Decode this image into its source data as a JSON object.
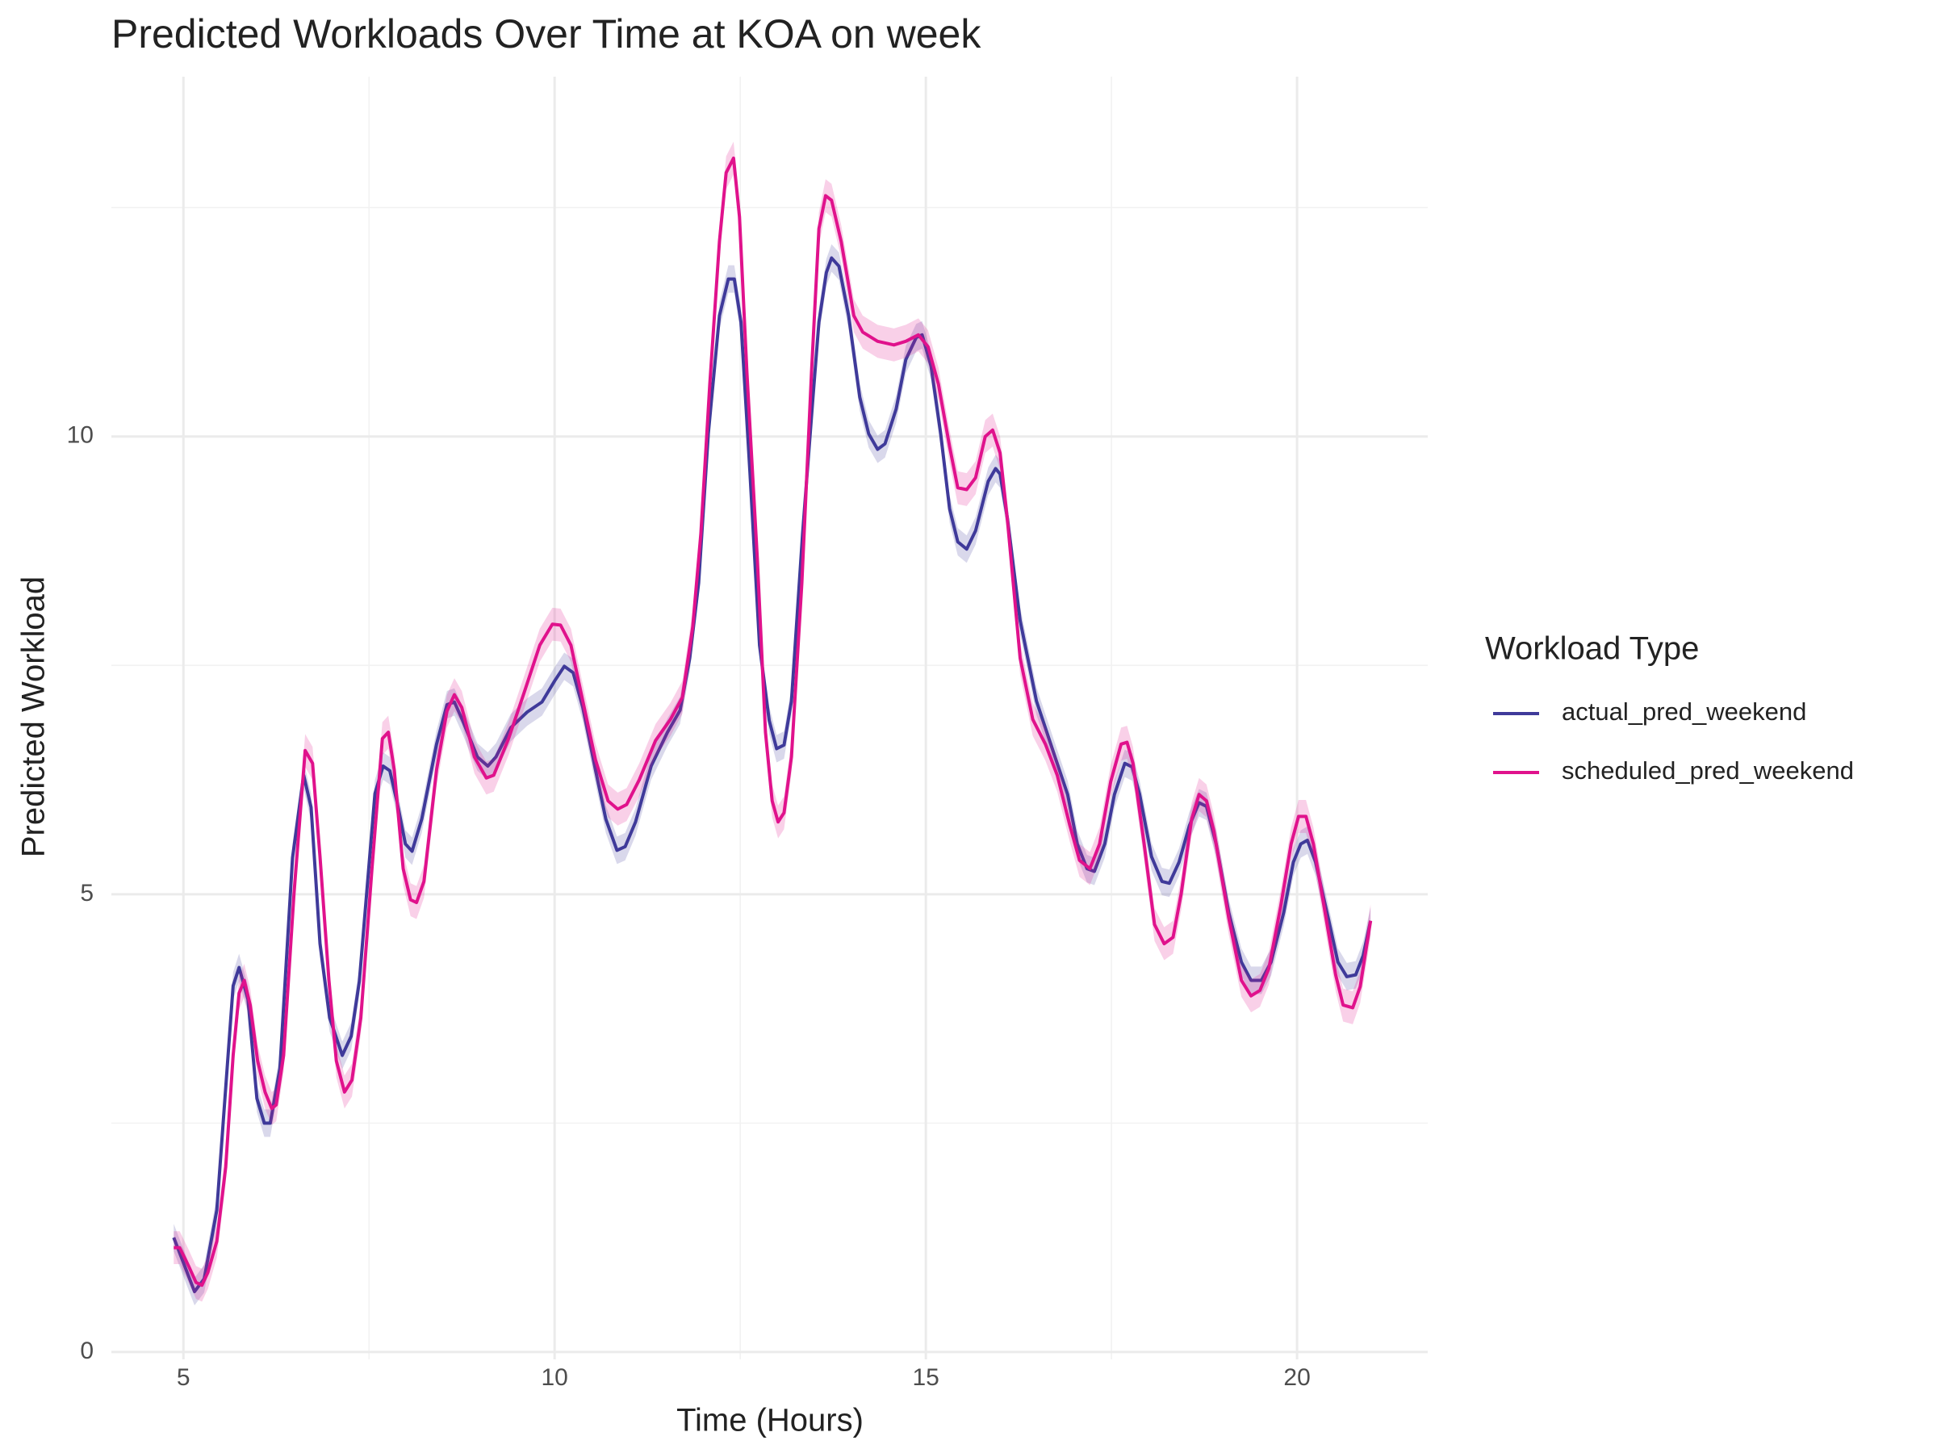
{
  "chart_data": {
    "type": "line",
    "title": "Predicted Workloads Over Time at KOA on week",
    "x_label": "Time (Hours)",
    "y_label": "Predicted Workload",
    "legend_title": "Workload Type",
    "legend_position": "right",
    "grid": true,
    "xlim": [
      4.03,
      21.76
    ],
    "ylim": [
      -0.08,
      13.93
    ],
    "xticks": [
      5,
      10,
      15,
      20
    ],
    "yticks": [
      0,
      5,
      10
    ],
    "x_minor_grid": [
      7.5,
      12.5,
      17.5
    ],
    "y_minor_grid": [
      2.5,
      7.5,
      12.5
    ],
    "series": [
      {
        "name": "actual_pred_weekend",
        "color": "#3f3a9a",
        "ribbon": 0.15,
        "x": [
          4.87,
          5.15,
          5.28,
          5.45,
          5.67,
          5.75,
          5.87,
          5.99,
          6.09,
          6.17,
          6.3,
          6.47,
          6.62,
          6.72,
          6.84,
          6.97,
          7.14,
          7.26,
          7.37,
          7.58,
          7.69,
          7.78,
          7.88,
          7.99,
          8.08,
          8.21,
          8.41,
          8.55,
          8.65,
          8.76,
          8.96,
          9.1,
          9.21,
          9.41,
          9.63,
          9.83,
          10.0,
          10.13,
          10.25,
          10.38,
          10.55,
          10.69,
          10.84,
          10.95,
          11.09,
          11.3,
          11.52,
          11.69,
          11.82,
          11.94,
          12.07,
          12.22,
          12.34,
          12.42,
          12.51,
          12.63,
          12.76,
          12.89,
          12.99,
          13.09,
          13.19,
          13.34,
          13.48,
          13.56,
          13.66,
          13.73,
          13.83,
          13.96,
          14.11,
          14.23,
          14.35,
          14.45,
          14.6,
          14.73,
          14.87,
          14.95,
          15.07,
          15.2,
          15.32,
          15.43,
          15.55,
          15.67,
          15.84,
          15.94,
          16.0,
          16.1,
          16.27,
          16.49,
          16.74,
          16.91,
          17.04,
          17.17,
          17.27,
          17.41,
          17.54,
          17.68,
          17.78,
          17.88,
          18.04,
          18.18,
          18.28,
          18.41,
          18.55,
          18.68,
          18.78,
          18.91,
          19.08,
          19.25,
          19.38,
          19.52,
          19.65,
          19.82,
          19.95,
          20.05,
          20.14,
          20.25,
          20.42,
          20.55,
          20.67,
          20.79,
          20.89,
          20.99
        ],
        "values": [
          1.25,
          0.66,
          0.8,
          1.55,
          4.0,
          4.2,
          3.85,
          2.77,
          2.5,
          2.5,
          3.1,
          5.4,
          6.3,
          5.95,
          4.46,
          3.65,
          3.24,
          3.45,
          4.05,
          6.1,
          6.4,
          6.35,
          6.0,
          5.55,
          5.47,
          5.82,
          6.64,
          7.07,
          7.1,
          6.9,
          6.5,
          6.4,
          6.5,
          6.82,
          6.99,
          7.1,
          7.33,
          7.49,
          7.42,
          7.04,
          6.36,
          5.82,
          5.48,
          5.52,
          5.79,
          6.4,
          6.77,
          7.01,
          7.58,
          8.4,
          10.03,
          11.32,
          11.72,
          11.72,
          11.25,
          9.62,
          7.72,
          6.9,
          6.59,
          6.63,
          7.11,
          8.94,
          10.43,
          11.25,
          11.79,
          11.95,
          11.86,
          11.32,
          10.43,
          10.03,
          9.86,
          9.92,
          10.3,
          10.84,
          11.08,
          11.11,
          10.77,
          10.03,
          9.21,
          8.85,
          8.77,
          8.97,
          9.51,
          9.65,
          9.59,
          9.1,
          7.99,
          7.11,
          6.5,
          6.09,
          5.55,
          5.28,
          5.25,
          5.55,
          6.09,
          6.43,
          6.39,
          6.09,
          5.41,
          5.14,
          5.12,
          5.35,
          5.75,
          6.0,
          5.96,
          5.55,
          4.8,
          4.26,
          4.06,
          4.06,
          4.26,
          4.8,
          5.35,
          5.55,
          5.59,
          5.35,
          4.74,
          4.26,
          4.1,
          4.12,
          4.33,
          4.71
        ]
      },
      {
        "name": "scheduled_pred_weekend",
        "color": "#e0128c",
        "ribbon": 0.18,
        "x": [
          4.87,
          4.95,
          5.07,
          5.17,
          5.25,
          5.33,
          5.45,
          5.57,
          5.67,
          5.75,
          5.82,
          5.9,
          6.0,
          6.1,
          6.19,
          6.25,
          6.35,
          6.49,
          6.64,
          6.74,
          6.84,
          6.96,
          7.06,
          7.17,
          7.27,
          7.39,
          7.54,
          7.68,
          7.76,
          7.84,
          7.96,
          8.06,
          8.14,
          8.24,
          8.41,
          8.55,
          8.65,
          8.75,
          8.92,
          9.08,
          9.18,
          9.38,
          9.58,
          9.8,
          9.97,
          10.08,
          10.22,
          10.38,
          10.55,
          10.72,
          10.85,
          10.97,
          11.14,
          11.36,
          11.56,
          11.72,
          11.86,
          11.97,
          12.09,
          12.22,
          12.31,
          12.41,
          12.49,
          12.59,
          12.73,
          12.84,
          12.93,
          13.01,
          13.09,
          13.19,
          13.33,
          13.46,
          13.56,
          13.65,
          13.73,
          13.86,
          14.03,
          14.15,
          14.35,
          14.57,
          14.73,
          14.9,
          15.03,
          15.17,
          15.32,
          15.43,
          15.55,
          15.67,
          15.8,
          15.9,
          16.0,
          16.1,
          16.27,
          16.44,
          16.61,
          16.77,
          16.94,
          17.07,
          17.21,
          17.34,
          17.49,
          17.63,
          17.71,
          17.79,
          17.94,
          18.08,
          18.21,
          18.33,
          18.44,
          18.58,
          18.68,
          18.78,
          18.88,
          19.08,
          19.25,
          19.38,
          19.5,
          19.62,
          19.78,
          19.92,
          20.02,
          20.12,
          20.22,
          20.39,
          20.52,
          20.62,
          20.75,
          20.85,
          20.99
        ],
        "values": [
          1.14,
          1.14,
          0.94,
          0.76,
          0.73,
          0.87,
          1.21,
          2.02,
          3.24,
          3.92,
          4.06,
          3.79,
          3.18,
          2.84,
          2.66,
          2.7,
          3.24,
          5.01,
          6.57,
          6.43,
          5.41,
          4.06,
          3.18,
          2.84,
          2.97,
          3.65,
          5.28,
          6.7,
          6.77,
          6.36,
          5.28,
          4.94,
          4.91,
          5.14,
          6.36,
          7.0,
          7.18,
          7.04,
          6.5,
          6.27,
          6.3,
          6.7,
          7.18,
          7.72,
          7.95,
          7.94,
          7.72,
          7.11,
          6.47,
          6.02,
          5.93,
          5.98,
          6.25,
          6.68,
          6.91,
          7.15,
          7.92,
          8.94,
          10.57,
          12.13,
          12.88,
          13.04,
          12.4,
          10.7,
          8.67,
          6.77,
          6.02,
          5.79,
          5.89,
          6.5,
          8.4,
          10.7,
          12.27,
          12.63,
          12.58,
          12.13,
          11.32,
          11.14,
          11.04,
          11.0,
          11.04,
          11.11,
          10.98,
          10.57,
          9.89,
          9.44,
          9.42,
          9.55,
          10.0,
          10.07,
          9.82,
          9.08,
          7.58,
          6.91,
          6.64,
          6.3,
          5.75,
          5.37,
          5.28,
          5.55,
          6.23,
          6.64,
          6.66,
          6.43,
          5.55,
          4.67,
          4.46,
          4.53,
          5.01,
          5.82,
          6.09,
          6.02,
          5.69,
          4.74,
          4.06,
          3.89,
          3.95,
          4.19,
          4.87,
          5.55,
          5.85,
          5.85,
          5.55,
          4.74,
          4.12,
          3.79,
          3.76,
          3.99,
          4.71
        ]
      }
    ]
  }
}
